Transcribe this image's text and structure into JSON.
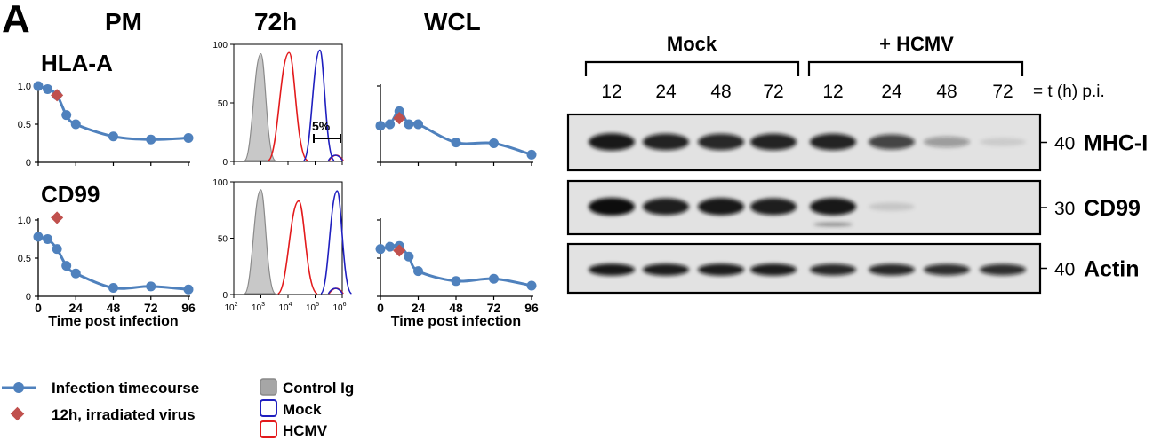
{
  "panel_letter": "A",
  "col_headers": {
    "pm": "PM",
    "h72": "72h",
    "wcl": "WCL"
  },
  "row_labels": {
    "hla": "HLA-A",
    "cd99": "CD99"
  },
  "axis": {
    "y_ticks": [
      "0",
      "0.5",
      "1.0"
    ],
    "y_ticks_cd99": [
      "0",
      "0.5",
      "1.0"
    ],
    "x_ticks": [
      "0",
      "24",
      "48",
      "72",
      "96"
    ],
    "x_label": "Time post infection",
    "hist_y_ticks": [
      "0",
      "50",
      "100"
    ],
    "hist_x_ticks": [
      {
        "base": "10",
        "exp": "2"
      },
      {
        "base": "10",
        "exp": "3"
      },
      {
        "base": "10",
        "exp": "4"
      },
      {
        "base": "10",
        "exp": "5"
      },
      {
        "base": "10",
        "exp": "6"
      }
    ]
  },
  "hist_annotation": "5%",
  "blot": {
    "groups": {
      "mock": "Mock",
      "hcmv": "+ HCMV"
    },
    "timepoints": [
      "12",
      "24",
      "48",
      "72",
      "12",
      "24",
      "48",
      "72"
    ],
    "time_label": "= t (h) p.i.",
    "rows": [
      {
        "mw": "40",
        "label": "MHC-I",
        "intensities": [
          0.95,
          0.9,
          0.88,
          0.9,
          0.9,
          0.75,
          0.35,
          0.1
        ]
      },
      {
        "mw": "30",
        "label": "CD99",
        "intensities": [
          1.0,
          0.92,
          0.95,
          0.92,
          0.95,
          0.12,
          0.0,
          0.0
        ]
      },
      {
        "mw": "40",
        "label": "Actin",
        "intensities": [
          0.95,
          0.93,
          0.93,
          0.93,
          0.88,
          0.88,
          0.85,
          0.85
        ]
      }
    ]
  },
  "legend": {
    "timecourse": "Infection timecourse",
    "irradiated": "12h, irradiated virus",
    "control": "Control Ig",
    "mock": "Mock",
    "hcmv": "HCMV"
  },
  "colors": {
    "series": "#4f81bd",
    "irradiated": "#c0504d",
    "mock": "#1f1fbf",
    "hcmv": "#e31a1c",
    "control": "#a6a6a6"
  },
  "chart_data": [
    {
      "type": "line",
      "panel": "PM HLA-A",
      "x": [
        0,
        6,
        12,
        18,
        24,
        48,
        72,
        96
      ],
      "series": [
        {
          "name": "Infection timecourse",
          "values": [
            1.0,
            0.96,
            0.88,
            0.62,
            0.5,
            0.34,
            0.3,
            0.32
          ]
        }
      ],
      "irradiated_point": {
        "x": 12,
        "y": 0.88
      },
      "xlim": [
        0,
        96
      ],
      "ylim": [
        0,
        1.0
      ]
    },
    {
      "type": "line",
      "panel": "PM CD99",
      "x": [
        0,
        6,
        12,
        18,
        24,
        48,
        72,
        96
      ],
      "series": [
        {
          "name": "Infection timecourse",
          "values": [
            0.78,
            0.75,
            0.62,
            0.4,
            0.3,
            0.11,
            0.13,
            0.09
          ]
        }
      ],
      "irradiated_point": {
        "x": 12,
        "y": 1.03
      },
      "xlim": [
        0,
        96
      ],
      "ylim": [
        0,
        1.0
      ]
    },
    {
      "type": "line",
      "panel": "WCL HLA-A",
      "x": [
        0,
        6,
        12,
        18,
        24,
        48,
        72,
        96
      ],
      "series": [
        {
          "name": "Infection timecourse",
          "values": [
            0.48,
            0.5,
            0.67,
            0.5,
            0.5,
            0.26,
            0.25,
            0.1
          ]
        }
      ],
      "irradiated_point": {
        "x": 12,
        "y": 0.58
      },
      "xlim": [
        0,
        96
      ],
      "ylim": [
        0,
        1.0
      ]
    },
    {
      "type": "line",
      "panel": "WCL CD99",
      "x": [
        0,
        6,
        12,
        18,
        24,
        48,
        72,
        96
      ],
      "series": [
        {
          "name": "Infection timecourse",
          "values": [
            0.62,
            0.65,
            0.66,
            0.52,
            0.33,
            0.2,
            0.23,
            0.14
          ]
        }
      ],
      "irradiated_point": {
        "x": 12,
        "y": 0.6
      },
      "xlim": [
        0,
        96
      ],
      "ylim": [
        0,
        1.0
      ]
    },
    {
      "type": "area",
      "panel": "72h HLA-A histogram",
      "x_scale": "log",
      "xlim": [
        100,
        1000000
      ],
      "ylim": [
        0,
        100
      ],
      "series": [
        {
          "name": "Control Ig",
          "peak": 1000,
          "peak_height": 92
        },
        {
          "name": "HCMV",
          "peak": 11000,
          "peak_height": 93
        },
        {
          "name": "Mock",
          "peak": 150000,
          "peak_height": 95
        }
      ]
    },
    {
      "type": "area",
      "panel": "72h CD99 histogram",
      "x_scale": "log",
      "xlim": [
        100,
        1000000
      ],
      "ylim": [
        0,
        100
      ],
      "series": [
        {
          "name": "Control Ig",
          "peak": 1000,
          "peak_height": 93
        },
        {
          "name": "HCMV",
          "peak": 25000,
          "peak_height": 83
        },
        {
          "name": "Mock",
          "peak": 650000,
          "peak_height": 92
        }
      ]
    }
  ]
}
